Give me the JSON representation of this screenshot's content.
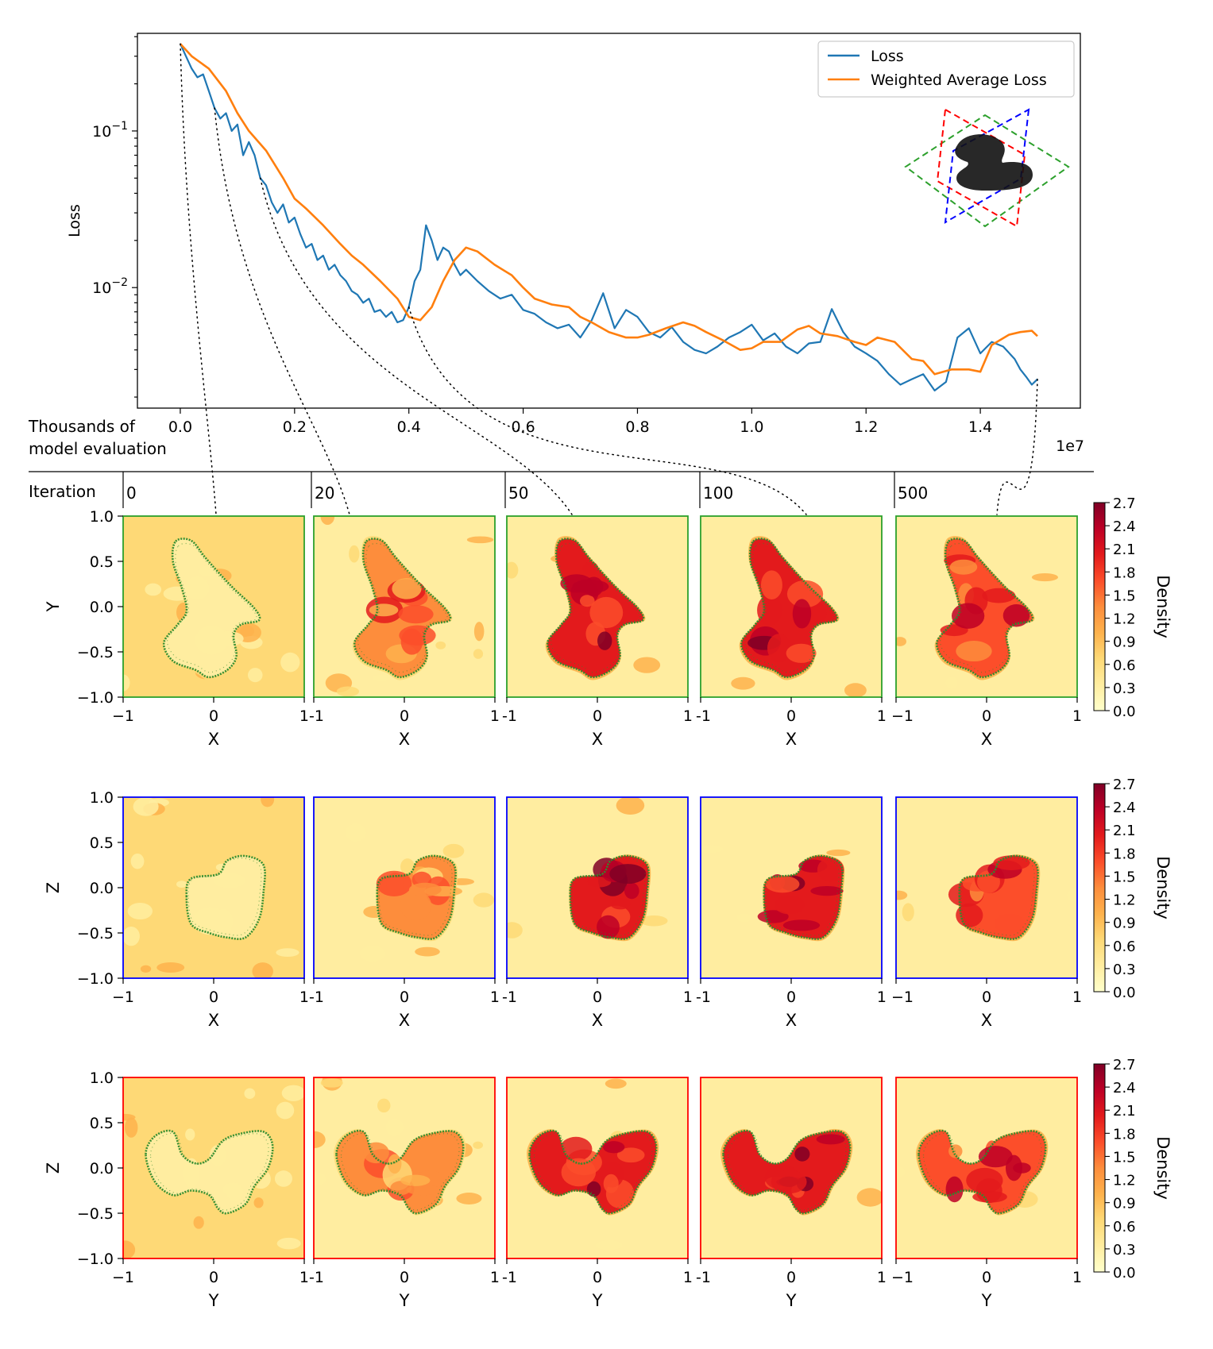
{
  "chart_data": [
    {
      "type": "line",
      "ylabel": "Loss",
      "xlabel_lines": [
        "Thousands of",
        "model evaluation"
      ],
      "x_offset_text": "1e7",
      "yscale": "log",
      "xlim": [
        -0.075,
        1.575
      ],
      "ylim": [
        0.0017,
        0.42
      ],
      "x_ticks": [
        0.0,
        0.2,
        0.4,
        0.6,
        0.8,
        1.0,
        1.2,
        1.4
      ],
      "x_tick_labels": [
        "0.0",
        "0.2",
        "0.4",
        "0.6",
        "0.8",
        "1.0",
        "1.2",
        "1.4"
      ],
      "y_ticks": [
        0.1,
        0.01
      ],
      "y_tick_labels": [
        {
          "base": "10",
          "exp": "−1"
        },
        {
          "base": "10",
          "exp": "−2"
        }
      ],
      "legend_position": "top-right",
      "series": [
        {
          "name": "Loss",
          "color": "#1f77b4",
          "x": [
            0.0,
            0.01,
            0.02,
            0.03,
            0.04,
            0.05,
            0.06,
            0.07,
            0.08,
            0.09,
            0.1,
            0.11,
            0.12,
            0.13,
            0.14,
            0.15,
            0.16,
            0.17,
            0.18,
            0.19,
            0.2,
            0.21,
            0.22,
            0.23,
            0.24,
            0.25,
            0.26,
            0.27,
            0.28,
            0.29,
            0.3,
            0.31,
            0.32,
            0.33,
            0.34,
            0.35,
            0.36,
            0.37,
            0.38,
            0.39,
            0.4,
            0.41,
            0.42,
            0.43,
            0.44,
            0.45,
            0.46,
            0.47,
            0.48,
            0.49,
            0.5,
            0.52,
            0.54,
            0.56,
            0.58,
            0.6,
            0.62,
            0.64,
            0.66,
            0.68,
            0.7,
            0.72,
            0.74,
            0.76,
            0.78,
            0.8,
            0.82,
            0.84,
            0.86,
            0.88,
            0.9,
            0.92,
            0.94,
            0.96,
            0.98,
            1.0,
            1.02,
            1.04,
            1.06,
            1.08,
            1.1,
            1.12,
            1.14,
            1.16,
            1.18,
            1.2,
            1.22,
            1.24,
            1.26,
            1.28,
            1.3,
            1.32,
            1.34,
            1.36,
            1.38,
            1.4,
            1.42,
            1.44,
            1.46,
            1.47,
            1.48,
            1.49,
            1.5
          ],
          "values": [
            0.36,
            0.3,
            0.25,
            0.22,
            0.23,
            0.18,
            0.14,
            0.12,
            0.13,
            0.1,
            0.11,
            0.07,
            0.085,
            0.07,
            0.05,
            0.045,
            0.035,
            0.03,
            0.034,
            0.026,
            0.028,
            0.022,
            0.018,
            0.019,
            0.015,
            0.016,
            0.013,
            0.014,
            0.012,
            0.011,
            0.0095,
            0.009,
            0.008,
            0.0085,
            0.007,
            0.0072,
            0.0065,
            0.007,
            0.006,
            0.0062,
            0.0075,
            0.011,
            0.013,
            0.025,
            0.02,
            0.015,
            0.018,
            0.017,
            0.014,
            0.012,
            0.013,
            0.011,
            0.0095,
            0.0085,
            0.009,
            0.0072,
            0.0068,
            0.006,
            0.0055,
            0.0058,
            0.0048,
            0.0062,
            0.0092,
            0.0055,
            0.0072,
            0.0065,
            0.0052,
            0.0048,
            0.0056,
            0.0045,
            0.004,
            0.0038,
            0.0042,
            0.0048,
            0.0052,
            0.0058,
            0.0046,
            0.0051,
            0.0042,
            0.0038,
            0.0044,
            0.0045,
            0.0073,
            0.0052,
            0.0042,
            0.0038,
            0.0034,
            0.0028,
            0.0024,
            0.0026,
            0.0028,
            0.0022,
            0.0025,
            0.0048,
            0.0055,
            0.0038,
            0.0045,
            0.0042,
            0.0035,
            0.003,
            0.0027,
            0.0024,
            0.0026
          ]
        },
        {
          "name": "Weighted Average Loss",
          "color": "#ff7f0e",
          "x": [
            0.0,
            0.02,
            0.05,
            0.08,
            0.1,
            0.12,
            0.15,
            0.18,
            0.2,
            0.22,
            0.25,
            0.28,
            0.3,
            0.32,
            0.35,
            0.38,
            0.4,
            0.42,
            0.44,
            0.46,
            0.48,
            0.5,
            0.52,
            0.55,
            0.58,
            0.6,
            0.62,
            0.65,
            0.68,
            0.7,
            0.72,
            0.75,
            0.78,
            0.8,
            0.82,
            0.85,
            0.88,
            0.9,
            0.92,
            0.95,
            0.98,
            1.0,
            1.02,
            1.05,
            1.08,
            1.1,
            1.12,
            1.15,
            1.18,
            1.2,
            1.22,
            1.25,
            1.28,
            1.3,
            1.32,
            1.35,
            1.38,
            1.4,
            1.42,
            1.45,
            1.47,
            1.49,
            1.5
          ],
          "values": [
            0.36,
            0.3,
            0.25,
            0.18,
            0.13,
            0.1,
            0.075,
            0.05,
            0.037,
            0.032,
            0.025,
            0.019,
            0.016,
            0.014,
            0.011,
            0.0085,
            0.0065,
            0.0062,
            0.0075,
            0.011,
            0.015,
            0.018,
            0.017,
            0.014,
            0.012,
            0.01,
            0.0085,
            0.0078,
            0.0075,
            0.0065,
            0.006,
            0.0052,
            0.0048,
            0.0048,
            0.005,
            0.0055,
            0.006,
            0.0057,
            0.0052,
            0.0046,
            0.004,
            0.0041,
            0.0045,
            0.0045,
            0.0054,
            0.0057,
            0.0051,
            0.0049,
            0.0045,
            0.0043,
            0.0048,
            0.0045,
            0.0035,
            0.0034,
            0.0028,
            0.003,
            0.003,
            0.0029,
            0.0043,
            0.005,
            0.0052,
            0.0053,
            0.0049
          ]
        }
      ]
    },
    {
      "type": "heatmap",
      "row_label": "Iteration",
      "iterations": [
        "0",
        "20",
        "50",
        "100",
        "500"
      ],
      "iteration_x": [
        0.0,
        0.06,
        0.14,
        0.4,
        1.5
      ],
      "axis_ticks": [
        -1.0,
        -0.5,
        0.0,
        0.5,
        1.0
      ],
      "y_tick_labels": [
        "−1.0",
        "−0.5",
        "0.0",
        "0.5",
        "1.0"
      ],
      "x_tick_labels": [
        "−1",
        "0",
        "1"
      ],
      "x_tick_labels_inner": [
        "-1",
        "0",
        "1"
      ],
      "x_tick_labels_last": [
        "−1",
        "0",
        "1"
      ],
      "colorbar_label": "Density",
      "colorbar_ticks": [
        "0.0",
        "0.3",
        "0.6",
        "0.9",
        "1.2",
        "1.5",
        "1.8",
        "2.1",
        "2.4",
        "2.7"
      ],
      "colorbar_range": [
        0.0,
        2.7
      ],
      "colormap": [
        "#ffffcc",
        "#ffeda0",
        "#fed976",
        "#feb24c",
        "#fd8d3c",
        "#fc4e2a",
        "#e31a1c",
        "#bd0026",
        "#800026"
      ],
      "rows": [
        {
          "ylabel": "Y",
          "xlabel": "X",
          "frame_color": "#2ca02c"
        },
        {
          "ylabel": "Z",
          "xlabel": "X",
          "frame_color": "#0000ff"
        },
        {
          "ylabel": "Z",
          "xlabel": "Y",
          "frame_color": "#ff0000"
        }
      ],
      "outline_color": "#2e8b2e",
      "background_level_by_iteration": [
        0.75,
        0.35,
        0.2,
        0.2,
        0.2
      ],
      "interior_level_by_iteration": [
        0.45,
        1.2,
        2.0,
        2.0,
        1.7
      ]
    }
  ]
}
